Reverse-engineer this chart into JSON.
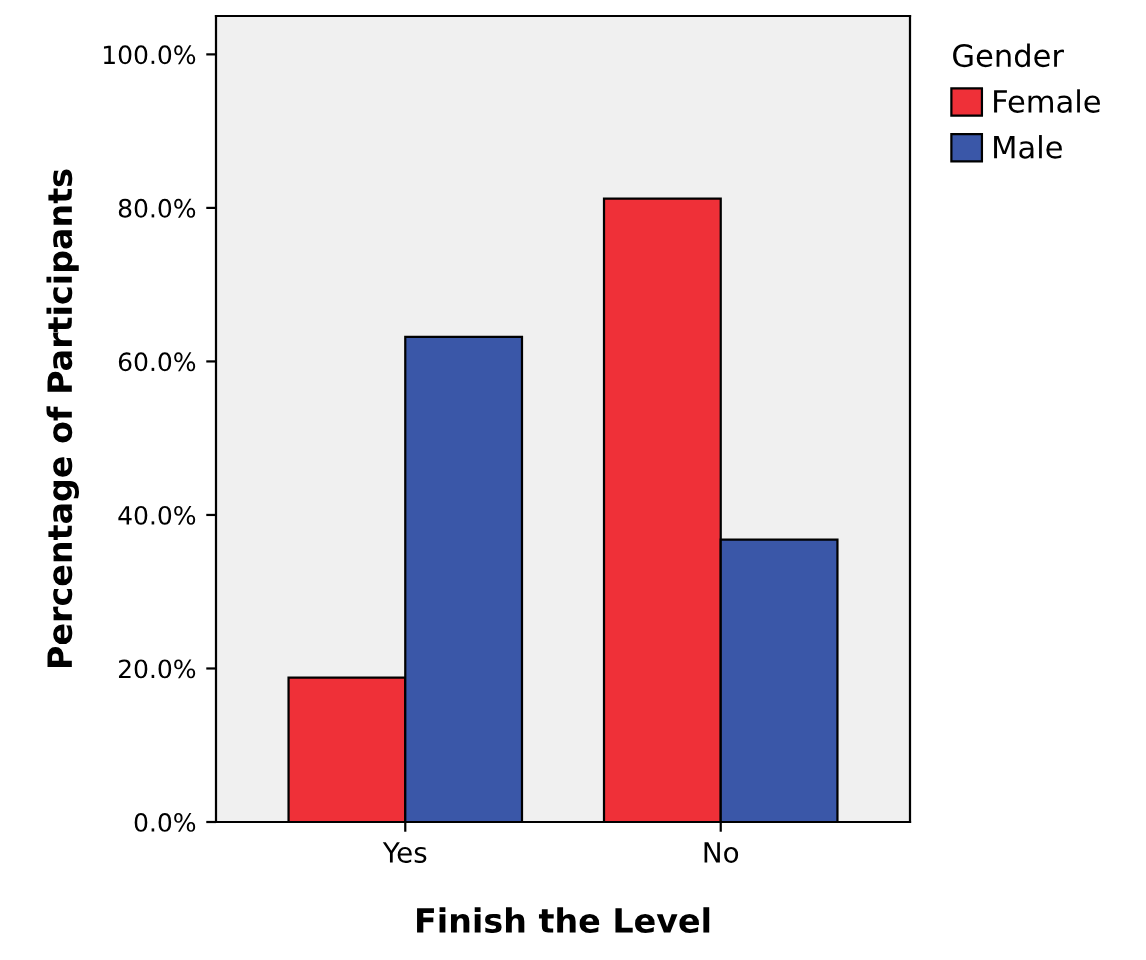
{
  "chart_data": {
    "type": "bar",
    "xlabel": "Finish the Level",
    "ylabel": "Percentage of Participants",
    "legend_title": "Gender",
    "categories": [
      "Yes",
      "No"
    ],
    "series": [
      {
        "name": "Female",
        "color": "#ef3038",
        "values": [
          18.8,
          81.2
        ]
      },
      {
        "name": "Male",
        "color": "#3a57a8",
        "values": [
          63.2,
          36.8
        ]
      }
    ],
    "ylim": [
      0,
      105
    ],
    "yticks": [
      {
        "value": 0,
        "label": "0.0%"
      },
      {
        "value": 20,
        "label": "20.0%"
      },
      {
        "value": 40,
        "label": "40.0%"
      },
      {
        "value": 60,
        "label": "60.0%"
      },
      {
        "value": 80,
        "label": "80.0%"
      },
      {
        "value": 100,
        "label": "100.0%"
      }
    ],
    "grid": false,
    "legend": "top right"
  }
}
